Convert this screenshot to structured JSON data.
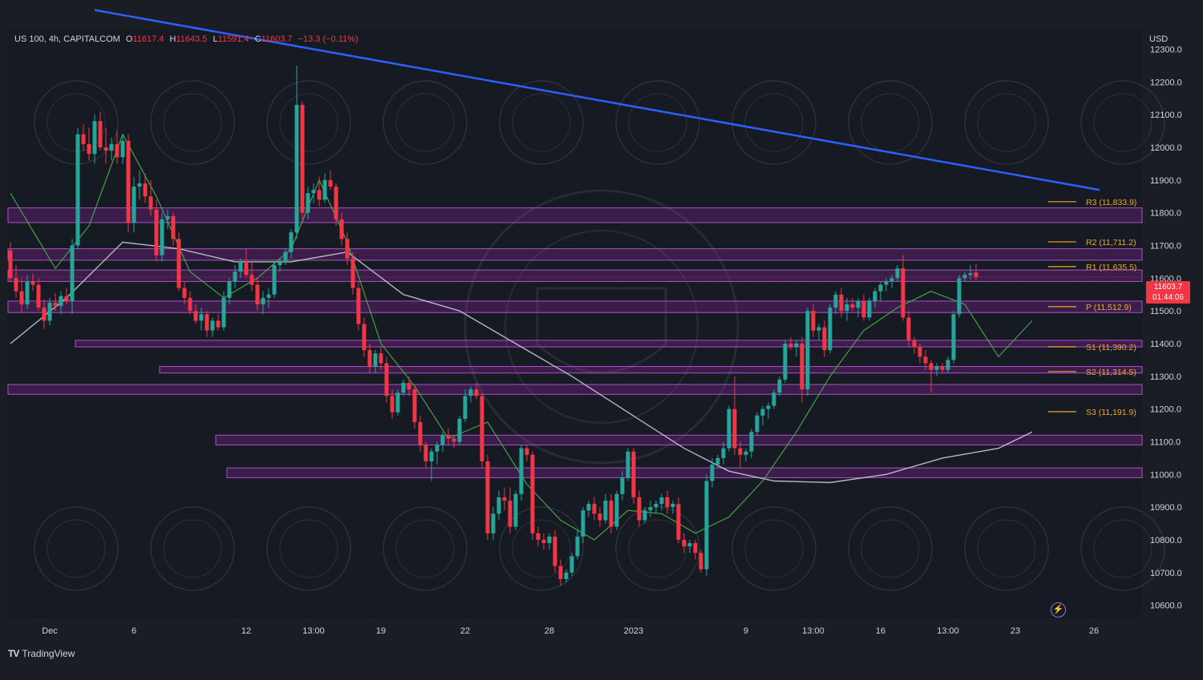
{
  "header": {
    "symbol": "US 100, 4h, CAPITALCOM",
    "open_key": "O",
    "open": "11617.4",
    "high_key": "H",
    "high": "11643.5",
    "low_key": "L",
    "low": "11591.4",
    "close_key": "C",
    "close": "11603.7",
    "change": "−13.3 (−0.11%)"
  },
  "currency": "USD",
  "brand": {
    "logo": "TV",
    "name": "TradingView"
  },
  "price_tag": {
    "price": "11603.7",
    "countdown": "01:44:06"
  },
  "colors": {
    "background": "#1b1d24",
    "bull": "#26a69a",
    "bear": "#f23645",
    "trendline": "#2962ff",
    "zone": "#9c27b0",
    "ma_fast": "#4caf50",
    "ma_slow": "#d1d4dc",
    "pivot": "#f5a623",
    "alert_icon": "#9c6ade"
  },
  "icons": {
    "alert": "lightning-bolt-icon"
  },
  "chart_data": {
    "type": "candlestick",
    "y_axis_ticks": [
      "12300.0",
      "12200.0",
      "12100.0",
      "12000.0",
      "11900.0",
      "11800.0",
      "11700.0",
      "11600.0",
      "11500.0",
      "11400.0",
      "11300.0",
      "11200.0",
      "11100.0",
      "11000.0",
      "10900.0",
      "10800.0",
      "10700.0",
      "10600.0"
    ],
    "ylim": [
      10560,
      12360
    ],
    "x_axis_labels": [
      "Dec",
      "6",
      "12",
      "13:00",
      "19",
      "22",
      "28",
      "2023",
      "9",
      "13:00",
      "16",
      "13:00",
      "23",
      "26"
    ],
    "x_label_bars": [
      7,
      22,
      42,
      54,
      66,
      81,
      96,
      111,
      131,
      143,
      155,
      167,
      179,
      193
    ],
    "candles": [
      [
        11685,
        11710,
        11590,
        11600
      ],
      [
        11600,
        11640,
        11540,
        11560
      ],
      [
        11560,
        11600,
        11495,
        11520
      ],
      [
        11520,
        11610,
        11505,
        11590
      ],
      [
        11590,
        11615,
        11560,
        11580
      ],
      [
        11580,
        11600,
        11500,
        11510
      ],
      [
        11510,
        11535,
        11445,
        11470
      ],
      [
        11470,
        11540,
        11455,
        11525
      ],
      [
        11525,
        11555,
        11500,
        11515
      ],
      [
        11515,
        11560,
        11490,
        11545
      ],
      [
        11545,
        11570,
        11520,
        11530
      ],
      [
        11530,
        11720,
        11490,
        11700
      ],
      [
        11700,
        12060,
        11690,
        12040
      ],
      [
        12040,
        12070,
        11990,
        12010
      ],
      [
        12010,
        12060,
        11960,
        11980
      ],
      [
        11980,
        12100,
        11950,
        12080
      ],
      [
        12080,
        12110,
        11990,
        12000
      ],
      [
        12000,
        12060,
        11950,
        11990
      ],
      [
        11990,
        12030,
        11960,
        12010
      ],
      [
        12010,
        12050,
        11950,
        11970
      ],
      [
        11970,
        12040,
        11950,
        12020
      ],
      [
        12020,
        12040,
        11740,
        11770
      ],
      [
        11770,
        11910,
        11740,
        11880
      ],
      [
        11880,
        11930,
        11840,
        11890
      ],
      [
        11890,
        11920,
        11830,
        11850
      ],
      [
        11850,
        11900,
        11790,
        11810
      ],
      [
        11810,
        11840,
        11650,
        11670
      ],
      [
        11670,
        11800,
        11650,
        11780
      ],
      [
        11780,
        11810,
        11750,
        11790
      ],
      [
        11790,
        11800,
        11700,
        11720
      ],
      [
        11720,
        11740,
        11560,
        11570
      ],
      [
        11570,
        11590,
        11520,
        11540
      ],
      [
        11540,
        11560,
        11490,
        11500
      ],
      [
        11500,
        11520,
        11460,
        11470
      ],
      [
        11470,
        11510,
        11440,
        11490
      ],
      [
        11490,
        11500,
        11420,
        11440
      ],
      [
        11440,
        11480,
        11420,
        11470
      ],
      [
        11470,
        11490,
        11440,
        11450
      ],
      [
        11450,
        11560,
        11440,
        11540
      ],
      [
        11540,
        11600,
        11520,
        11590
      ],
      [
        11590,
        11640,
        11570,
        11620
      ],
      [
        11620,
        11660,
        11600,
        11650
      ],
      [
        11650,
        11690,
        11600,
        11610
      ],
      [
        11610,
        11650,
        11560,
        11580
      ],
      [
        11580,
        11600,
        11500,
        11520
      ],
      [
        11520,
        11560,
        11490,
        11540
      ],
      [
        11540,
        11570,
        11510,
        11550
      ],
      [
        11550,
        11650,
        11540,
        11640
      ],
      [
        11640,
        11660,
        11620,
        11650
      ],
      [
        11650,
        11690,
        11640,
        11680
      ],
      [
        11680,
        11750,
        11660,
        11740
      ],
      [
        11740,
        12250,
        11720,
        12130
      ],
      [
        12130,
        12140,
        11780,
        11800
      ],
      [
        11800,
        11880,
        11780,
        11860
      ],
      [
        11860,
        11890,
        11830,
        11870
      ],
      [
        11870,
        11910,
        11820,
        11840
      ],
      [
        11840,
        11920,
        11830,
        11900
      ],
      [
        11900,
        11930,
        11870,
        11880
      ],
      [
        11880,
        11890,
        11760,
        11780
      ],
      [
        11780,
        11800,
        11700,
        11720
      ],
      [
        11720,
        11740,
        11640,
        11660
      ],
      [
        11660,
        11680,
        11550,
        11570
      ],
      [
        11570,
        11590,
        11440,
        11460
      ],
      [
        11460,
        11480,
        11360,
        11380
      ],
      [
        11380,
        11400,
        11310,
        11330
      ],
      [
        11330,
        11380,
        11310,
        11370
      ],
      [
        11370,
        11390,
        11320,
        11340
      ],
      [
        11340,
        11360,
        11220,
        11240
      ],
      [
        11240,
        11260,
        11170,
        11190
      ],
      [
        11190,
        11260,
        11180,
        11250
      ],
      [
        11250,
        11290,
        11240,
        11280
      ],
      [
        11280,
        11300,
        11240,
        11260
      ],
      [
        11260,
        11270,
        11140,
        11160
      ],
      [
        11160,
        11180,
        11070,
        11090
      ],
      [
        11090,
        11100,
        11020,
        11040
      ],
      [
        11040,
        11080,
        10980,
        11070
      ],
      [
        11070,
        11100,
        11030,
        11090
      ],
      [
        11090,
        11130,
        11070,
        11120
      ],
      [
        11120,
        11140,
        11090,
        11110
      ],
      [
        11110,
        11120,
        11080,
        11100
      ],
      [
        11100,
        11180,
        11090,
        11170
      ],
      [
        11170,
        11260,
        11160,
        11240
      ],
      [
        11240,
        11270,
        11220,
        11260
      ],
      [
        11260,
        11280,
        11230,
        11240
      ],
      [
        11240,
        11250,
        11020,
        11040
      ],
      [
        11040,
        11060,
        10800,
        10820
      ],
      [
        10820,
        10900,
        10800,
        10880
      ],
      [
        10880,
        10950,
        10860,
        10930
      ],
      [
        10930,
        10960,
        10890,
        10920
      ],
      [
        10920,
        10960,
        10820,
        10840
      ],
      [
        10840,
        10950,
        10830,
        10940
      ],
      [
        10940,
        11090,
        10920,
        11080
      ],
      [
        11080,
        11090,
        11040,
        11060
      ],
      [
        11060,
        11070,
        10800,
        10820
      ],
      [
        10820,
        10840,
        10780,
        10800
      ],
      [
        10800,
        10820,
        10770,
        10790
      ],
      [
        10790,
        10820,
        10770,
        10810
      ],
      [
        10810,
        10830,
        10700,
        10720
      ],
      [
        10720,
        10740,
        10660,
        10680
      ],
      [
        10680,
        10710,
        10670,
        10700
      ],
      [
        10700,
        10760,
        10690,
        10750
      ],
      [
        10750,
        10830,
        10740,
        10810
      ],
      [
        10810,
        10900,
        10790,
        10890
      ],
      [
        10890,
        10920,
        10870,
        10910
      ],
      [
        10910,
        10930,
        10860,
        10880
      ],
      [
        10880,
        10900,
        10840,
        10860
      ],
      [
        10860,
        10940,
        10850,
        10920
      ],
      [
        10920,
        10940,
        10820,
        10840
      ],
      [
        10840,
        10950,
        10830,
        10940
      ],
      [
        10940,
        11010,
        10920,
        10990
      ],
      [
        10990,
        11080,
        10980,
        11070
      ],
      [
        11070,
        11080,
        10910,
        10930
      ],
      [
        10930,
        10950,
        10840,
        10860
      ],
      [
        10860,
        10900,
        10850,
        10890
      ],
      [
        10890,
        10920,
        10870,
        10900
      ],
      [
        10900,
        10920,
        10880,
        10910
      ],
      [
        10910,
        10940,
        10890,
        10930
      ],
      [
        10930,
        10950,
        10880,
        10900
      ],
      [
        10900,
        10920,
        10880,
        10910
      ],
      [
        10910,
        10930,
        10790,
        10800
      ],
      [
        10800,
        10820,
        10760,
        10780
      ],
      [
        10780,
        10800,
        10760,
        10790
      ],
      [
        10790,
        10800,
        10740,
        10760
      ],
      [
        10760,
        10770,
        10700,
        10710
      ],
      [
        10710,
        11000,
        10690,
        10980
      ],
      [
        10980,
        11050,
        10960,
        11030
      ],
      [
        11030,
        11060,
        11020,
        11050
      ],
      [
        11050,
        11100,
        11030,
        11080
      ],
      [
        11080,
        11210,
        11070,
        11200
      ],
      [
        11200,
        11300,
        11060,
        11080
      ],
      [
        11080,
        11100,
        11020,
        11060
      ],
      [
        11060,
        11080,
        11040,
        11070
      ],
      [
        11070,
        11140,
        11050,
        11130
      ],
      [
        11130,
        11190,
        11120,
        11180
      ],
      [
        11180,
        11210,
        11150,
        11200
      ],
      [
        11200,
        11220,
        11170,
        11210
      ],
      [
        11210,
        11260,
        11200,
        11250
      ],
      [
        11250,
        11300,
        11240,
        11290
      ],
      [
        11290,
        11410,
        11280,
        11400
      ],
      [
        11400,
        11420,
        11380,
        11390
      ],
      [
        11390,
        11410,
        11360,
        11400
      ],
      [
        11400,
        11420,
        11220,
        11260
      ],
      [
        11260,
        11510,
        11240,
        11500
      ],
      [
        11500,
        11520,
        11420,
        11440
      ],
      [
        11440,
        11460,
        11410,
        11450
      ],
      [
        11450,
        11470,
        11360,
        11380
      ],
      [
        11380,
        11520,
        11370,
        11510
      ],
      [
        11510,
        11560,
        11490,
        11550
      ],
      [
        11550,
        11570,
        11480,
        11500
      ],
      [
        11500,
        11540,
        11470,
        11520
      ],
      [
        11520,
        11540,
        11500,
        11510
      ],
      [
        11510,
        11540,
        11480,
        11530
      ],
      [
        11530,
        11550,
        11470,
        11480
      ],
      [
        11480,
        11540,
        11470,
        11530
      ],
      [
        11530,
        11570,
        11510,
        11560
      ],
      [
        11560,
        11590,
        11530,
        11580
      ],
      [
        11580,
        11600,
        11560,
        11590
      ],
      [
        11590,
        11610,
        11570,
        11600
      ],
      [
        11600,
        11640,
        11590,
        11630
      ],
      [
        11630,
        11670,
        11470,
        11480
      ],
      [
        11480,
        11500,
        11390,
        11410
      ],
      [
        11410,
        11420,
        11370,
        11390
      ],
      [
        11390,
        11400,
        11340,
        11360
      ],
      [
        11360,
        11380,
        11320,
        11340
      ],
      [
        11340,
        11350,
        11250,
        11320
      ],
      [
        11320,
        11340,
        11300,
        11330
      ],
      [
        11330,
        11340,
        11310,
        11320
      ],
      [
        11320,
        11360,
        11310,
        11350
      ],
      [
        11350,
        11500,
        11340,
        11490
      ],
      [
        11490,
        11610,
        11480,
        11600
      ],
      [
        11600,
        11620,
        11590,
        11610
      ],
      [
        11610,
        11640,
        11595,
        11615
      ],
      [
        11617.4,
        11643.5,
        11591.4,
        11603.7
      ]
    ],
    "ma_fast": [
      [
        0,
        11860
      ],
      [
        8,
        11630
      ],
      [
        14,
        11760
      ],
      [
        20,
        12040
      ],
      [
        26,
        11850
      ],
      [
        32,
        11620
      ],
      [
        38,
        11540
      ],
      [
        44,
        11600
      ],
      [
        50,
        11690
      ],
      [
        55,
        11900
      ],
      [
        60,
        11710
      ],
      [
        66,
        11400
      ],
      [
        72,
        11270
      ],
      [
        78,
        11110
      ],
      [
        85,
        11160
      ],
      [
        92,
        10970
      ],
      [
        98,
        10860
      ],
      [
        104,
        10800
      ],
      [
        110,
        10890
      ],
      [
        116,
        10880
      ],
      [
        122,
        10820
      ],
      [
        128,
        10870
      ],
      [
        134,
        10980
      ],
      [
        140,
        11130
      ],
      [
        146,
        11300
      ],
      [
        152,
        11440
      ],
      [
        158,
        11510
      ],
      [
        164,
        11560
      ],
      [
        170,
        11520
      ],
      [
        176,
        11360
      ],
      [
        182,
        11470
      ]
    ],
    "ma_slow": [
      [
        0,
        11400
      ],
      [
        10,
        11540
      ],
      [
        20,
        11710
      ],
      [
        30,
        11690
      ],
      [
        40,
        11650
      ],
      [
        50,
        11650
      ],
      [
        60,
        11680
      ],
      [
        70,
        11550
      ],
      [
        80,
        11500
      ],
      [
        90,
        11400
      ],
      [
        100,
        11300
      ],
      [
        110,
        11190
      ],
      [
        120,
        11080
      ],
      [
        128,
        11010
      ],
      [
        136,
        10980
      ],
      [
        146,
        10975
      ],
      [
        156,
        11000
      ],
      [
        166,
        11050
      ],
      [
        176,
        11080
      ],
      [
        182,
        11130
      ]
    ],
    "trendline": [
      [
        15,
        12420
      ],
      [
        194,
        11870
      ]
    ],
    "zones": [
      {
        "from_bar": 0,
        "lo": 11770,
        "hi": 11815
      },
      {
        "from_bar": 0,
        "lo": 11655,
        "hi": 11690
      },
      {
        "from_bar": 0,
        "lo": 11590,
        "hi": 11625
      },
      {
        "from_bar": 0,
        "lo": 11495,
        "hi": 11530
      },
      {
        "from_bar": 12,
        "lo": 11390,
        "hi": 11410
      },
      {
        "from_bar": 27,
        "lo": 11310,
        "hi": 11330
      },
      {
        "from_bar": 0,
        "lo": 11245,
        "hi": 11275
      },
      {
        "from_bar": 37,
        "lo": 11090,
        "hi": 11120
      },
      {
        "from_bar": 39,
        "lo": 10990,
        "hi": 11020
      }
    ],
    "pivots": [
      {
        "label": "R3 (11,833.9)",
        "value": 11833.9
      },
      {
        "label": "R2 (11,711.2)",
        "value": 11711.2
      },
      {
        "label": "R1 (11,635.5)",
        "value": 11635.5
      },
      {
        "label": "P (11,512.9)",
        "value": 11512.9
      },
      {
        "label": "S1 (11,390.2)",
        "value": 11390.2
      },
      {
        "label": "S2 (11,314.5)",
        "value": 11314.5
      },
      {
        "label": "S3 (11,191.9)",
        "value": 11191.9
      }
    ],
    "last_price": 11603.7
  }
}
